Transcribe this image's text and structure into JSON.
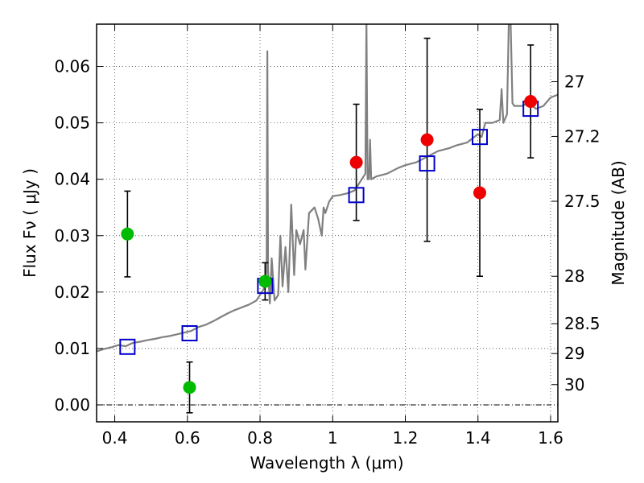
{
  "chart_data": {
    "type": "scatter",
    "xlabel": "Wavelength  λ (μm)",
    "ylabel": "Flux  Fν  ( μJy )",
    "ylabel_right": "Magnitude (AB)",
    "xlim": [
      0.35,
      1.62
    ],
    "ylim": [
      -0.003,
      0.0675
    ],
    "grid": true,
    "x_ticks": [
      0.4,
      0.6,
      0.8,
      1.0,
      1.2,
      1.4,
      1.6
    ],
    "x_tick_labels": [
      "0.4",
      "0.6",
      "0.8",
      "1",
      "1.2",
      "1.4",
      "1.6"
    ],
    "y_ticks": [
      0.0,
      0.01,
      0.02,
      0.03,
      0.04,
      0.05,
      0.06
    ],
    "y_tick_labels": [
      "0.00",
      "0.01",
      "0.02",
      "0.03",
      "0.04",
      "0.05",
      "0.06"
    ],
    "right_ticks": [
      {
        "label": "27",
        "flux": 0.0573
      },
      {
        "label": "27.2",
        "flux": 0.0476
      },
      {
        "label": "27.5",
        "flux": 0.0361
      },
      {
        "label": "28",
        "flux": 0.0228
      },
      {
        "label": "28.5",
        "flux": 0.0144
      },
      {
        "label": "29",
        "flux": 0.0091
      },
      {
        "label": "30",
        "flux": 0.0036
      }
    ],
    "series": [
      {
        "marker": "circle-filled",
        "color": "#00bb00",
        "points": [
          {
            "x": 0.435,
            "y": 0.0303,
            "yerr": 0.0076
          },
          {
            "x": 0.606,
            "y": 0.0031,
            "yerr": 0.0045
          },
          {
            "x": 0.814,
            "y": 0.0219,
            "yerr": 0.0033
          }
        ]
      },
      {
        "marker": "circle-filled",
        "color": "#ee0000",
        "points": [
          {
            "x": 1.065,
            "y": 0.043,
            "yerr": 0.0103
          },
          {
            "x": 1.26,
            "y": 0.047,
            "yerr": 0.018
          },
          {
            "x": 1.405,
            "y": 0.0376,
            "yerr": 0.0148
          },
          {
            "x": 1.545,
            "y": 0.0538,
            "yerr": 0.01
          }
        ]
      },
      {
        "marker": "square-open",
        "color": "#0000cc",
        "points": [
          {
            "x": 0.435,
            "y": 0.0103
          },
          {
            "x": 0.606,
            "y": 0.0127
          },
          {
            "x": 0.814,
            "y": 0.0211
          },
          {
            "x": 1.065,
            "y": 0.0372
          },
          {
            "x": 1.26,
            "y": 0.0428
          },
          {
            "x": 1.405,
            "y": 0.0475
          },
          {
            "x": 1.545,
            "y": 0.0525
          }
        ]
      },
      {
        "marker": "line",
        "color": "#808080",
        "points": [
          [
            0.35,
            0.0095
          ],
          [
            0.37,
            0.0099
          ],
          [
            0.39,
            0.0102
          ],
          [
            0.41,
            0.0106
          ],
          [
            0.43,
            0.0104
          ],
          [
            0.45,
            0.011
          ],
          [
            0.47,
            0.0112
          ],
          [
            0.49,
            0.0115
          ],
          [
            0.51,
            0.0117
          ],
          [
            0.53,
            0.012
          ],
          [
            0.55,
            0.0122
          ],
          [
            0.57,
            0.0125
          ],
          [
            0.59,
            0.0128
          ],
          [
            0.61,
            0.0131
          ],
          [
            0.63,
            0.0138
          ],
          [
            0.65,
            0.0142
          ],
          [
            0.67,
            0.0148
          ],
          [
            0.69,
            0.0155
          ],
          [
            0.71,
            0.0162
          ],
          [
            0.73,
            0.0168
          ],
          [
            0.75,
            0.0173
          ],
          [
            0.77,
            0.0178
          ],
          [
            0.79,
            0.0185
          ],
          [
            0.8,
            0.0195
          ],
          [
            0.81,
            0.0205
          ],
          [
            0.815,
            0.0225
          ],
          [
            0.818,
            0.0238
          ],
          [
            0.82,
            0.0627
          ],
          [
            0.822,
            0.0238
          ],
          [
            0.827,
            0.018
          ],
          [
            0.832,
            0.026
          ],
          [
            0.84,
            0.0185
          ],
          [
            0.85,
            0.0195
          ],
          [
            0.856,
            0.03
          ],
          [
            0.862,
            0.021
          ],
          [
            0.87,
            0.028
          ],
          [
            0.878,
            0.02
          ],
          [
            0.886,
            0.0355
          ],
          [
            0.894,
            0.023
          ],
          [
            0.9,
            0.031
          ],
          [
            0.91,
            0.0285
          ],
          [
            0.92,
            0.031
          ],
          [
            0.925,
            0.024
          ],
          [
            0.935,
            0.034
          ],
          [
            0.95,
            0.035
          ],
          [
            0.96,
            0.033
          ],
          [
            0.97,
            0.03
          ],
          [
            0.975,
            0.035
          ],
          [
            0.98,
            0.034
          ],
          [
            0.99,
            0.036
          ],
          [
            1.0,
            0.037
          ],
          [
            1.02,
            0.0372
          ],
          [
            1.04,
            0.0375
          ],
          [
            1.06,
            0.038
          ],
          [
            1.07,
            0.039
          ],
          [
            1.08,
            0.04
          ],
          [
            1.09,
            0.041
          ],
          [
            1.093,
            0.068
          ],
          [
            1.096,
            0.04
          ],
          [
            1.1,
            0.04
          ],
          [
            1.103,
            0.047
          ],
          [
            1.106,
            0.04
          ],
          [
            1.12,
            0.0405
          ],
          [
            1.15,
            0.041
          ],
          [
            1.18,
            0.042
          ],
          [
            1.2,
            0.0425
          ],
          [
            1.23,
            0.043
          ],
          [
            1.26,
            0.044
          ],
          [
            1.29,
            0.045
          ],
          [
            1.32,
            0.0455
          ],
          [
            1.34,
            0.046
          ],
          [
            1.37,
            0.0465
          ],
          [
            1.4,
            0.048
          ],
          [
            1.41,
            0.0475
          ],
          [
            1.42,
            0.05
          ],
          [
            1.44,
            0.05
          ],
          [
            1.46,
            0.0505
          ],
          [
            1.465,
            0.056
          ],
          [
            1.47,
            0.05
          ],
          [
            1.48,
            0.0515
          ],
          [
            1.485,
            0.068
          ],
          [
            1.49,
            0.068
          ],
          [
            1.495,
            0.0535
          ],
          [
            1.5,
            0.053
          ],
          [
            1.52,
            0.053
          ],
          [
            1.54,
            0.0535
          ],
          [
            1.56,
            0.0525
          ],
          [
            1.58,
            0.053
          ],
          [
            1.6,
            0.0545
          ],
          [
            1.62,
            0.055
          ]
        ]
      }
    ]
  }
}
